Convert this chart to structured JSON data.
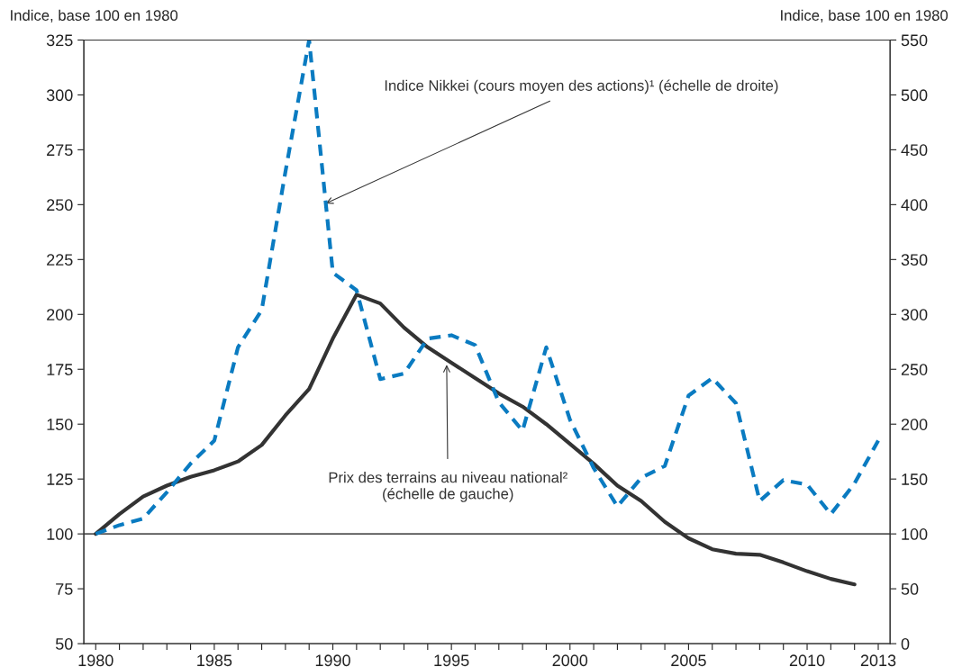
{
  "chart_data": {
    "type": "line",
    "ylabel": "Indice, base 100 en 1980",
    "y2label": "Indice, base 100 en 1980",
    "x": [
      1980,
      1981,
      1982,
      1983,
      1984,
      1985,
      1986,
      1987,
      1988,
      1989,
      1990,
      1991,
      1992,
      1993,
      1994,
      1995,
      1996,
      1997,
      1998,
      1999,
      2000,
      2001,
      2002,
      2003,
      2004,
      2005,
      2006,
      2007,
      2008,
      2009,
      2010,
      2011,
      2012,
      2013
    ],
    "series": [
      {
        "color": "#0a7bc1",
        "axis": "y2",
        "line_style": "dashed",
        "values": [
          100,
          108,
          114,
          138,
          164,
          185,
          270,
          304,
          430,
          550,
          338,
          322,
          241,
          246,
          278,
          281,
          272,
          220,
          194,
          270,
          204,
          160,
          125,
          151,
          162,
          226,
          242,
          219,
          130,
          149,
          145,
          118,
          146,
          185
        ]
      },
      {
        "color": "#333333",
        "line_style": "solid",
        "values": [
          100,
          109,
          117,
          122,
          126,
          129,
          133,
          140.5,
          154,
          166,
          189,
          209,
          205,
          194,
          185,
          178,
          171,
          164,
          158,
          150,
          141,
          132,
          122,
          115,
          105.5,
          98,
          93,
          91,
          90.5,
          87,
          83,
          79.5,
          77,
          null
        ]
      }
    ],
    "xlim": [
      1979.5,
      2013.5
    ],
    "xticks": [
      1980,
      {
        "value": 1981,
        "label": null
      },
      {
        "value": 1982,
        "label": null
      },
      {
        "value": 1983,
        "label": null
      },
      {
        "value": 1984,
        "label": null
      },
      1985,
      {
        "value": 1986,
        "label": null
      },
      {
        "value": 1987,
        "label": null
      },
      {
        "value": 1988,
        "label": null
      },
      {
        "value": 1989,
        "label": null
      },
      1990,
      {
        "value": 1991,
        "label": null
      },
      {
        "value": 1992,
        "label": null
      },
      {
        "value": 1993,
        "label": null
      },
      {
        "value": 1994,
        "label": null
      },
      1995,
      {
        "value": 1996,
        "label": null
      },
      {
        "value": 1997,
        "label": null
      },
      {
        "value": 1998,
        "label": null
      },
      {
        "value": 1999,
        "label": null
      },
      2000,
      {
        "value": 2001,
        "label": null
      },
      {
        "value": 2002,
        "label": null
      },
      {
        "value": 2003,
        "label": null
      },
      {
        "value": 2004,
        "label": null
      },
      2005,
      {
        "value": 2006,
        "label": null
      },
      {
        "value": 2007,
        "label": null
      },
      {
        "value": 2008,
        "label": null
      },
      {
        "value": 2009,
        "label": null
      },
      2010,
      {
        "value": 2011,
        "label": null
      },
      {
        "value": 2012,
        "label": null
      },
      2013
    ],
    "ylim": [
      50,
      325
    ],
    "yticks": [
      50,
      75,
      100,
      125,
      150,
      175,
      200,
      225,
      250,
      275,
      300,
      325
    ],
    "y2lim": [
      0,
      550
    ],
    "y2ticks": [
      0,
      50,
      100,
      150,
      200,
      250,
      300,
      350,
      400,
      450,
      500,
      550
    ],
    "ref_lines": [
      {
        "axis": "y",
        "value": 100,
        "color": "#555555"
      }
    ],
    "annotations": [
      {
        "text": "Indice Nikkei (cours moyen des actions)¹ (échelle de droite)",
        "x": 1989.7,
        "y": 250.5
      },
      {
        "text": "Prix des terrains au niveau national²\n(échelle de gauche)",
        "x": 1994.8,
        "y": 177
      }
    ],
    "grid": false,
    "legend": false
  }
}
